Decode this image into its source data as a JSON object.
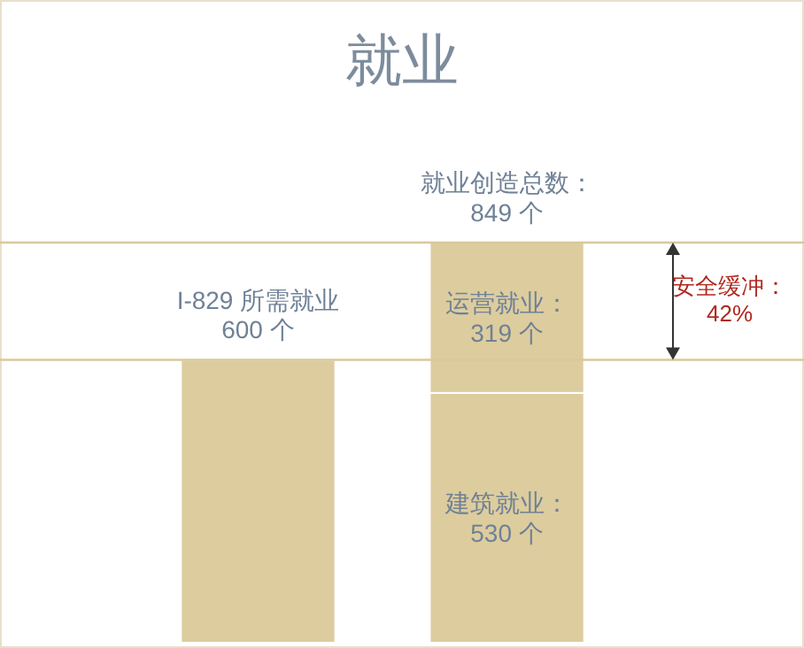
{
  "chart_data": {
    "type": "bar",
    "title": "就业",
    "stacked": true,
    "categories": [
      null,
      null
    ],
    "series": [
      {
        "color": "#ddcc9e",
        "values": [
          600,
          530
        ],
        "value_labels": [
          "I-829 所需就业\n600 个",
          "建筑就业：\n530 个"
        ]
      },
      {
        "color": "#ddcc9e",
        "values": [
          null,
          319
        ],
        "value_labels": [
          null,
          "运营就业：\n319 个"
        ]
      }
    ],
    "totals": [
      null,
      "就业创造总数：\n849 个"
    ],
    "ref_lines": [
      {
        "axis": "y",
        "value": 849,
        "color": "#d8c89a"
      },
      {
        "axis": "y",
        "value": 600,
        "color": "#d8c89a"
      }
    ],
    "annotations": [
      "安全缓冲：\n42%"
    ]
  }
}
